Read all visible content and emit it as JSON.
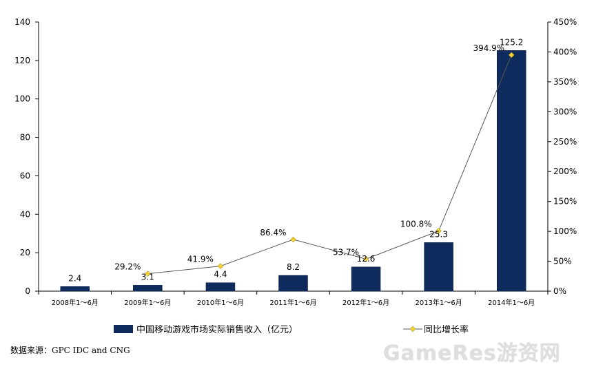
{
  "chart_data": {
    "type": "bar",
    "categories": [
      "2008年1～6月",
      "2009年1～6月",
      "2010年1～6月",
      "2011年1～6月",
      "2012年1～6月",
      "2013年1～6月",
      "2014年1～6月"
    ],
    "series": [
      {
        "name": "中国移动游戏市场实际销售收入（亿元）",
        "kind": "bar",
        "axis": "left",
        "values": [
          2.4,
          3.1,
          4.4,
          8.2,
          12.6,
          25.3,
          125.2
        ],
        "labels": [
          "2.4",
          "3.1",
          "4.4",
          "8.2",
          "12.6",
          "25.3",
          "125.2"
        ],
        "color": "#0f2a5c"
      },
      {
        "name": "同比增长率",
        "kind": "line",
        "axis": "right",
        "values": [
          null,
          29.2,
          41.9,
          86.4,
          53.7,
          100.8,
          394.9
        ],
        "labels": [
          "",
          "29.2%",
          "41.9%",
          "86.4%",
          "53.7%",
          "100.8%",
          "394.9%"
        ],
        "color": "#555555",
        "marker_color": "#f2d032"
      }
    ],
    "y_left": {
      "min": 0,
      "max": 140,
      "ticks": [
        "0",
        "20",
        "40",
        "60",
        "80",
        "100",
        "120",
        "140"
      ]
    },
    "y_right": {
      "min": 0,
      "max": 450,
      "ticks": [
        "0%",
        "50%",
        "100%",
        "150%",
        "200%",
        "250%",
        "300%",
        "350%",
        "400%",
        "450%"
      ]
    },
    "grid": false,
    "legend_position": "bottom"
  },
  "source": "数据来源：GPC IDC and CNG",
  "watermark": "GameRes游资网"
}
